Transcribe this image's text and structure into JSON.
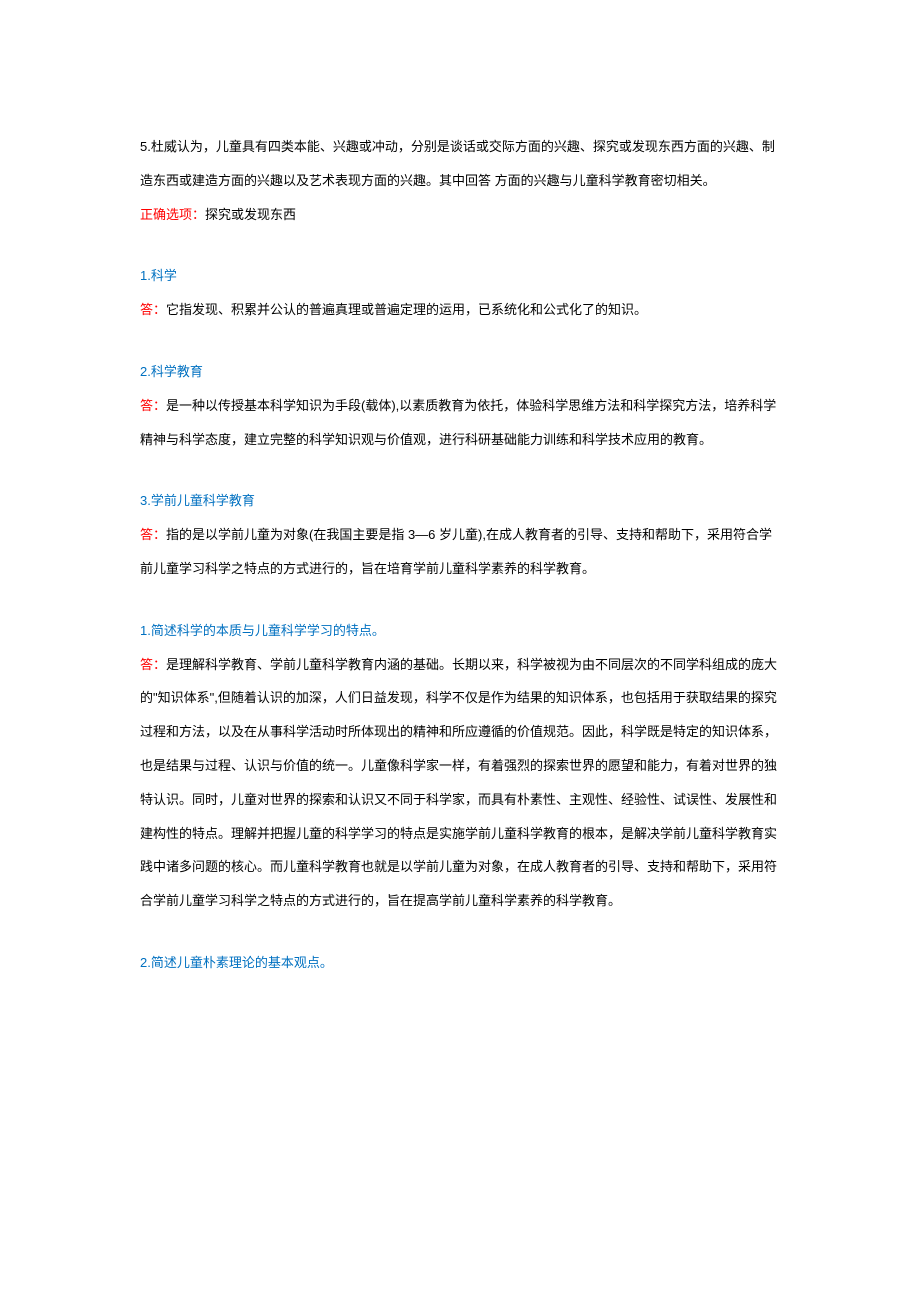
{
  "q5": {
    "text": "5.杜威认为，儿童具有四类本能、兴趣或冲动，分别是谈话或交际方面的兴趣、探究或发现东西方面的兴趣、制造东西或建造方面的兴趣以及艺术表现方面的兴趣。其中回答  方面的兴趣与儿童科学教育密切相关。",
    "answer_label": "正确选项：",
    "answer": "探究或发现东西"
  },
  "def1": {
    "title": "1.科学",
    "answer_label": "答：",
    "answer": "它指发现、积累并公认的普遍真理或普遍定理的运用，已系统化和公式化了的知识。"
  },
  "def2": {
    "title": "2.科学教育",
    "answer_label": "答：",
    "answer": "是一种以传授基本科学知识为手段(载体),以素质教育为依托，体验科学思维方法和科学探究方法，培养科学精神与科学态度，建立完整的科学知识观与价值观，进行科研基础能力训练和科学技术应用的教育。"
  },
  "def3": {
    "title": "3.学前儿童科学教育",
    "answer_label": "答：",
    "answer": "指的是以学前儿童为对象(在我国主要是指 3—6 岁儿童),在成人教育者的引导、支持和帮助下，采用符合学前儿童学习科学之特点的方式进行的，旨在培育学前儿童科学素养的科学教育。"
  },
  "essay1": {
    "title": "1.简述科学的本质与儿童科学学习的特点。",
    "answer_label": "答：",
    "answer": "是理解科学教育、学前儿童科学教育内涵的基础。长期以来，科学被视为由不同层次的不同学科组成的庞大的\"知识体系\",但随着认识的加深，人们日益发现，科学不仅是作为结果的知识体系，也包括用于获取结果的探究过程和方法，以及在从事科学活动时所体现出的精神和所应遵循的价值规范。因此，科学既是特定的知识体系，也是结果与过程、认识与价值的统一。儿童像科学家一样，有着强烈的探索世界的愿望和能力，有着对世界的独特认识。同时，儿童对世界的探索和认识又不同于科学家，而具有朴素性、主观性、经验性、试误性、发展性和建构性的特点。理解并把握儿童的科学学习的特点是实施学前儿童科学教育的根本，是解决学前儿童科学教育实践中诸多问题的核心。而儿童科学教育也就是以学前儿童为对象，在成人教育者的引导、支持和帮助下，采用符合学前儿童学习科学之特点的方式进行的，旨在提高学前儿童科学素养的科学教育。"
  },
  "essay2": {
    "title": "2.简述儿童朴素理论的基本观点。"
  },
  "colors": {
    "text": "#000000",
    "red": "#ff0000",
    "blue": "#0070c0",
    "background": "#ffffff"
  },
  "typography": {
    "font_family": "Microsoft YaHei, SimSun, sans-serif",
    "font_size_pt": 10,
    "line_height": 2.6
  }
}
